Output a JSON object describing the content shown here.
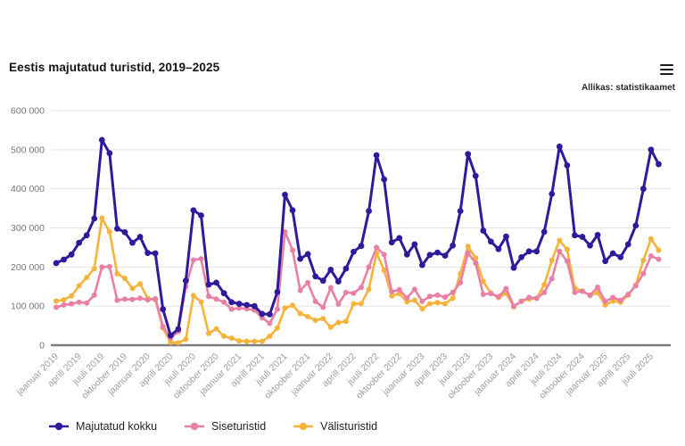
{
  "header": {
    "title": "Eestis majutatud turistid, 2019–2025",
    "source": "Allikas: statistikaamet",
    "menu_icon": "hamburger-menu-icon"
  },
  "chart_data": {
    "type": "line",
    "title": "Eestis majutatud turistid, 2019–2025",
    "x_unit": "month",
    "x_start": "jaanuar 2019",
    "x_end": "august 2025",
    "months_per_tick": 3,
    "x_tick_labels": [
      "jaanuar 2019",
      "aprill 2019",
      "juuli 2019",
      "oktoober 2019",
      "jaanuar 2020",
      "aprill 2020",
      "juuli 2020",
      "oktoober 2020",
      "jaanuar 2021",
      "aprill 2021",
      "juuli 2021",
      "oktoober 2021",
      "jaanuar 2022",
      "aprill 2022",
      "juuli 2022",
      "oktoober 2022",
      "jaanuar 2023",
      "aprill 2023",
      "juuli 2023",
      "oktoober 2023",
      "jaanuar 2024",
      "aprill 2024",
      "juuli 2024",
      "oktoober 2024",
      "jaanuar 2025",
      "aprill 2025",
      "juuli 2025"
    ],
    "ylim": [
      0,
      600000
    ],
    "y_tick_labels": [
      "0",
      "100 000",
      "200 000",
      "300 000",
      "400 000",
      "500 000",
      "600 000"
    ],
    "grid": "horizontal",
    "legend_position": "bottom-left",
    "colors": {
      "grid": "#e4e4e4",
      "zero_axis": "#7d7d7d",
      "x_labels": "#9d9d9d",
      "y_labels": "#757575"
    },
    "series": [
      {
        "name": "Majutatud kokku",
        "color": "#31199C",
        "values": [
          210000,
          219000,
          232000,
          262000,
          281000,
          324000,
          525000,
          491000,
          298000,
          289000,
          262000,
          277000,
          236000,
          235000,
          92000,
          25000,
          41000,
          165000,
          345000,
          332000,
          155000,
          160000,
          133000,
          110000,
          106000,
          103000,
          100000,
          80000,
          79000,
          136000,
          385000,
          345000,
          221000,
          233000,
          176000,
          165000,
          193000,
          163000,
          196000,
          239000,
          254000,
          343000,
          486000,
          424000,
          263000,
          274000,
          232000,
          258000,
          205000,
          231000,
          237000,
          229000,
          255000,
          343000,
          489000,
          433000,
          293000,
          265000,
          246000,
          278000,
          198000,
          225000,
          240000,
          240000,
          290000,
          387000,
          508000,
          460000,
          281000,
          277000,
          255000,
          282000,
          215000,
          235000,
          225000,
          258000,
          306000,
          400000,
          500000,
          463000
        ]
      },
      {
        "name": "Siseturistid",
        "color": "#EA7FA6",
        "values": [
          97000,
          103000,
          106000,
          110000,
          108000,
          128000,
          200000,
          201000,
          115000,
          118000,
          117000,
          120000,
          116000,
          119000,
          48000,
          18000,
          35000,
          150000,
          218000,
          221000,
          125000,
          118000,
          110000,
          92000,
          95000,
          93000,
          90000,
          70000,
          56000,
          92000,
          290000,
          243000,
          140000,
          160000,
          112000,
          97000,
          147000,
          105000,
          135000,
          133000,
          148000,
          200000,
          250000,
          232000,
          137000,
          142000,
          121000,
          143000,
          112000,
          125000,
          128000,
          123000,
          135000,
          160000,
          236000,
          210000,
          130000,
          132000,
          124000,
          145000,
          100000,
          112000,
          122000,
          120000,
          135000,
          170000,
          240000,
          215000,
          135000,
          138000,
          128000,
          148000,
          112000,
          122000,
          115000,
          130000,
          152000,
          183000,
          228000,
          220000
        ]
      },
      {
        "name": "Välisturistid",
        "color": "#F6B33C",
        "values": [
          113000,
          116000,
          126000,
          152000,
          173000,
          196000,
          325000,
          290000,
          183000,
          171000,
          145000,
          157000,
          120000,
          116000,
          44000,
          7000,
          6000,
          15000,
          127000,
          111000,
          30000,
          42000,
          23000,
          18000,
          11000,
          10000,
          10000,
          10000,
          23000,
          44000,
          95000,
          102000,
          81000,
          73000,
          64000,
          68000,
          46000,
          58000,
          61000,
          106000,
          106000,
          143000,
          236000,
          192000,
          126000,
          132000,
          111000,
          115000,
          93000,
          106000,
          109000,
          106000,
          120000,
          183000,
          253000,
          223000,
          163000,
          133000,
          122000,
          133000,
          98000,
          113000,
          118000,
          120000,
          155000,
          217000,
          268000,
          245000,
          146000,
          139000,
          127000,
          134000,
          103000,
          113000,
          110000,
          128000,
          154000,
          217000,
          272000,
          243000
        ]
      }
    ]
  }
}
